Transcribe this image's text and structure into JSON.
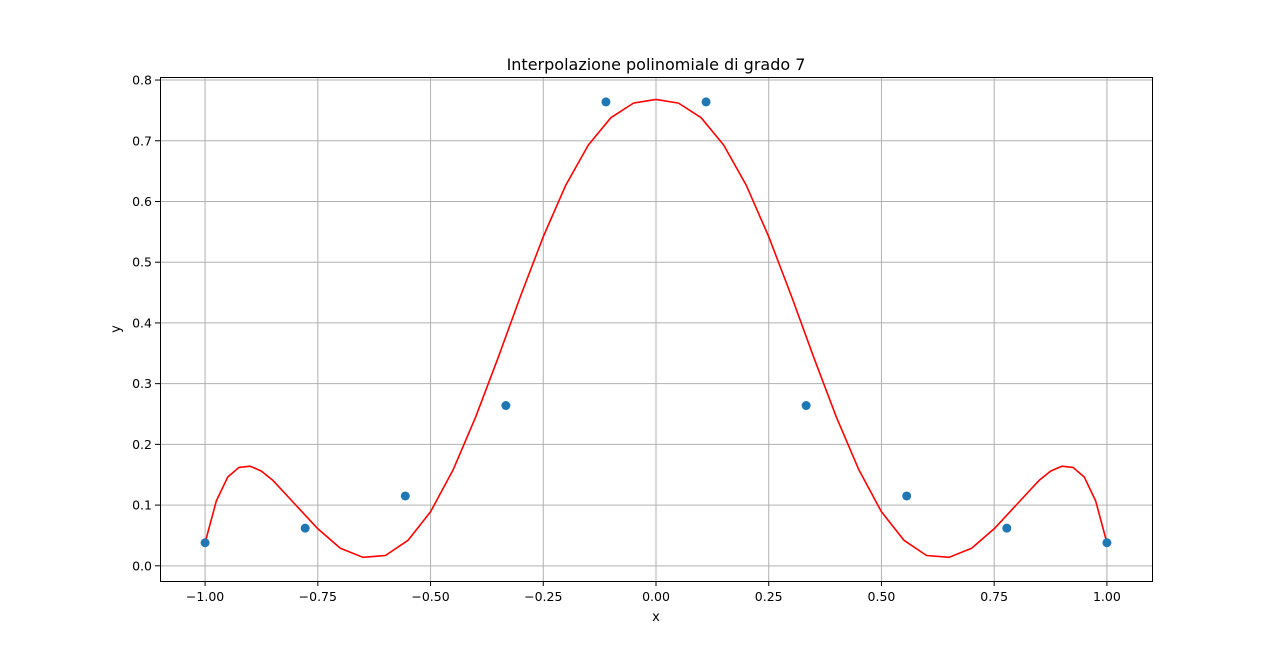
{
  "chart_data": {
    "type": "line",
    "title": "Interpolazione polinomiale di grado 7",
    "xlabel": "x",
    "ylabel": "y",
    "xlim": [
      -1.1,
      1.1
    ],
    "ylim": [
      -0.025,
      0.805
    ],
    "grid": true,
    "xticks": [
      -1.0,
      -0.75,
      -0.5,
      -0.25,
      0.0,
      0.25,
      0.5,
      0.75,
      1.0
    ],
    "xtick_labels": [
      "−1.00",
      "−0.75",
      "−0.50",
      "−0.25",
      "0.00",
      "0.25",
      "0.50",
      "0.75",
      "1.00"
    ],
    "yticks": [
      0.0,
      0.1,
      0.2,
      0.3,
      0.4,
      0.5,
      0.6,
      0.7,
      0.8
    ],
    "ytick_labels": [
      "0.0",
      "0.1",
      "0.2",
      "0.3",
      "0.4",
      "0.5",
      "0.6",
      "0.7",
      "0.8"
    ],
    "series": [
      {
        "kind": "scatter",
        "color": "#1f77b4",
        "x": [
          -1.0,
          -0.778,
          -0.556,
          -0.333,
          -0.111,
          0.111,
          0.333,
          0.556,
          0.778,
          1.0
        ],
        "y": [
          0.038,
          0.062,
          0.115,
          0.264,
          0.764,
          0.764,
          0.264,
          0.115,
          0.062,
          0.038
        ]
      },
      {
        "kind": "line",
        "color": "#ff0000",
        "x": [
          -1.0,
          -0.975,
          -0.95,
          -0.925,
          -0.9,
          -0.875,
          -0.85,
          -0.8,
          -0.75,
          -0.7,
          -0.65,
          -0.6,
          -0.55,
          -0.5,
          -0.45,
          -0.4,
          -0.35,
          -0.3,
          -0.25,
          -0.2,
          -0.15,
          -0.1,
          -0.05,
          0.0,
          0.05,
          0.1,
          0.15,
          0.2,
          0.25,
          0.3,
          0.35,
          0.4,
          0.45,
          0.5,
          0.55,
          0.6,
          0.65,
          0.7,
          0.75,
          0.8,
          0.85,
          0.875,
          0.9,
          0.925,
          0.95,
          0.975,
          1.0
        ],
        "y": [
          0.038,
          0.107,
          0.146,
          0.162,
          0.164,
          0.156,
          0.141,
          0.101,
          0.061,
          0.029,
          0.014,
          0.017,
          0.042,
          0.089,
          0.158,
          0.245,
          0.343,
          0.445,
          0.542,
          0.627,
          0.693,
          0.738,
          0.762,
          0.768,
          0.762,
          0.738,
          0.693,
          0.627,
          0.542,
          0.445,
          0.343,
          0.245,
          0.158,
          0.089,
          0.042,
          0.017,
          0.014,
          0.029,
          0.061,
          0.101,
          0.141,
          0.156,
          0.164,
          0.162,
          0.146,
          0.107,
          0.038
        ]
      }
    ]
  }
}
